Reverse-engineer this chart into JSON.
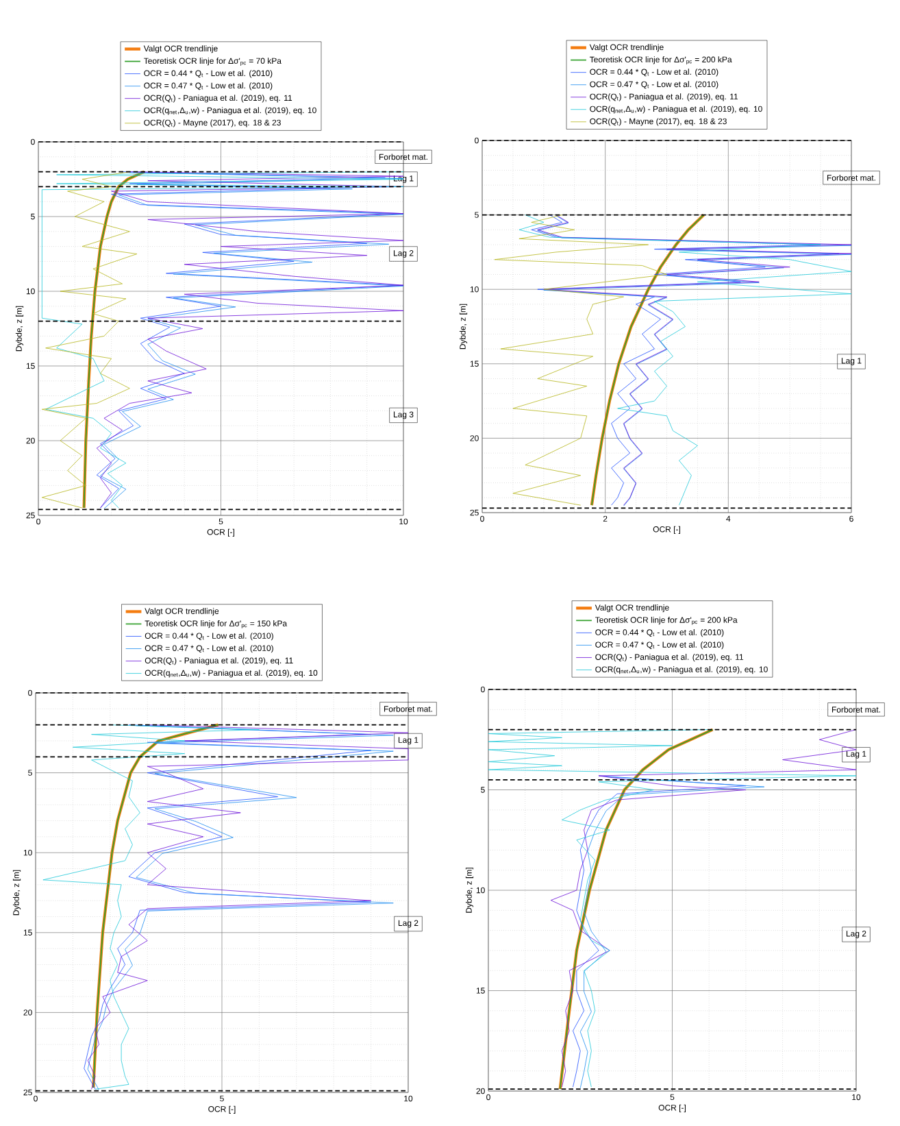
{
  "chart_data": [
    {
      "type": "line",
      "xlabel": "OCR [-]",
      "ylabel": "Dybde, z [m]",
      "xlim": [
        0,
        10
      ],
      "ylim": [
        25,
        0
      ],
      "xticks": [
        0,
        5,
        10
      ],
      "yticks": [
        0,
        5,
        10,
        15,
        20,
        25
      ],
      "grid": true,
      "legend": "top",
      "series": [
        {
          "name": "Valgt OCR trendlinje",
          "color": "#f47c10",
          "x": [
            2.9,
            2.45,
            2.2,
            2.0,
            1.88,
            1.7,
            1.55,
            1.45,
            1.38,
            1.3,
            1.25
          ],
          "values": [
            2,
            2.5,
            3,
            4,
            5,
            7,
            10,
            13,
            16,
            20,
            24.5
          ]
        },
        {
          "name": "Teoretisk OCR linje for Δσ'$_{pc}$ = 70 kPa",
          "color": "#33a02c",
          "x": [
            2.9,
            2.45,
            2.2,
            2.0,
            1.88,
            1.7,
            1.55,
            1.45,
            1.38,
            1.3,
            1.25
          ],
          "values": [
            2,
            2.5,
            3,
            4,
            5,
            7,
            10,
            13,
            16,
            20,
            24.5
          ]
        },
        {
          "name": "OCR = 0.44 * Q$_{t}$ - Low et al. (2010)",
          "color": "#1f4fff",
          "x": [
            2.3,
            9.5,
            2.5,
            8,
            2,
            2.8,
            10,
            4,
            5,
            9,
            4.5,
            7,
            3.5,
            10,
            3.5,
            5,
            2.8,
            3.6,
            2.8,
            3.2,
            4,
            2.8,
            3.5,
            2.2,
            2.6,
            1.7,
            2.1,
            1.6,
            2.2,
            1.7
          ],
          "values": [
            2.0,
            2.4,
            2.8,
            3.1,
            3.5,
            4.2,
            4.8,
            5.5,
            6.2,
            6.8,
            7.4,
            8.0,
            8.8,
            9.6,
            10.4,
            11.0,
            11.8,
            12.4,
            13.5,
            14.6,
            15.5,
            16.5,
            17.2,
            18.0,
            19.0,
            20.2,
            21.2,
            22.3,
            23.2,
            24.5
          ]
        },
        {
          "name": "OCR = 0.47 * Q$_{t}$ - Low et al. (2010)",
          "color": "#1c8cf0",
          "x": [
            2.5,
            10,
            2.7,
            8.6,
            2.2,
            3.0,
            10,
            4.3,
            5.4,
            9.6,
            4.8,
            7.5,
            3.7,
            10,
            3.7,
            5.4,
            3.0,
            3.9,
            3.0,
            3.4,
            4.3,
            3.0,
            3.7,
            2.3,
            2.8,
            1.8,
            2.2,
            1.7,
            2.4,
            1.8
          ],
          "values": [
            2.05,
            2.45,
            2.85,
            3.15,
            3.55,
            4.25,
            4.85,
            5.55,
            6.25,
            6.85,
            7.45,
            8.05,
            8.85,
            9.65,
            10.45,
            11.05,
            11.85,
            12.45,
            13.55,
            14.65,
            15.55,
            16.55,
            17.25,
            18.05,
            19.05,
            20.25,
            21.25,
            22.35,
            23.25,
            24.55
          ]
        },
        {
          "name": "OCR(Q$_{t}$) - Paniagua et al. (2019), eq. 11",
          "color": "#6a0fd8",
          "x": [
            2.5,
            10,
            3,
            10,
            2,
            3,
            10,
            3,
            6,
            10,
            5,
            9,
            4,
            7,
            10,
            4,
            6,
            10,
            3,
            4.5,
            3,
            3.5,
            4.6,
            3,
            4.2,
            2.5,
            1.8,
            2.3,
            1.6,
            2.0,
            1.7,
            2.0,
            1.7
          ],
          "values": [
            2.0,
            2.3,
            2.6,
            3.0,
            3.3,
            4.0,
            4.8,
            5.2,
            6.0,
            6.6,
            7.0,
            7.6,
            8.2,
            9.0,
            9.6,
            10.2,
            10.8,
            11.3,
            11.8,
            12.5,
            13.2,
            14.0,
            15.2,
            16.0,
            16.8,
            17.5,
            18.5,
            19.3,
            20.5,
            21.5,
            22.5,
            23.5,
            24.5
          ]
        },
        {
          "name": "OCR(q$_{net}$,Δ$_{u}$,w) - Paniagua et al. (2019), eq. 10",
          "color": "#1ec8d8",
          "x": [
            10,
            0.5,
            10,
            0.5,
            10,
            0.1,
            0.1,
            1.2,
            0.5,
            1.5,
            1.8,
            0.2,
            1.5,
            2.0,
            1.7,
            2.4,
            1.9,
            2.3,
            2.0,
            2.2
          ],
          "values": [
            2.0,
            2.2,
            2.5,
            2.8,
            3.0,
            3.2,
            11.8,
            12.2,
            13.8,
            14.5,
            16,
            17.9,
            18.5,
            19.5,
            20.5,
            21.5,
            22.2,
            23.0,
            24.0,
            24.5
          ]
        },
        {
          "name": "OCR(Q$_{t}$) - Mayne (2017), eq. 18 & 23",
          "color": "#b5b51a",
          "x": [
            2.5,
            1.2,
            2.0,
            0.8,
            1.8,
            1.0,
            2.5,
            1.2,
            2.7,
            1.5,
            2.3,
            0.6,
            2.4,
            1.5,
            2.2,
            1.8,
            0.2,
            2.0,
            1.7,
            2.5,
            1.6,
            0.1,
            1.3,
            0.6,
            1.2,
            0.8,
            1.3,
            0.1,
            1.2
          ],
          "values": [
            2.0,
            2.5,
            3.0,
            3.3,
            4.0,
            5.0,
            6.0,
            7.0,
            7.5,
            8.5,
            9.5,
            10.0,
            10.5,
            11.5,
            12.0,
            13.0,
            13.8,
            14.5,
            15.5,
            16.5,
            17.5,
            17.9,
            18.5,
            20.0,
            21.0,
            22.0,
            23.0,
            23.8,
            24.5
          ]
        }
      ],
      "ref_lines": [
        {
          "axis": "y",
          "value": 0,
          "color": "#000000",
          "line_style": "dashed"
        },
        {
          "axis": "y",
          "value": 2,
          "color": "#000000",
          "line_style": "dashed"
        },
        {
          "axis": "y",
          "value": 3,
          "color": "#000000",
          "line_style": "dashed"
        },
        {
          "axis": "y",
          "value": 12,
          "color": "#000000",
          "line_style": "dashed"
        },
        {
          "axis": "y",
          "value": 24.6,
          "color": "#000000",
          "line_style": "dashed"
        }
      ],
      "annotations": [
        "Forboret mat.",
        "Lag 1",
        "Lag 2",
        "Lag 3"
      ]
    },
    {
      "type": "line",
      "xlabel": "OCR [-]",
      "ylabel": "Dybde, z [m]",
      "xlim": [
        0,
        6
      ],
      "ylim": [
        25,
        0
      ],
      "xticks": [
        0,
        2,
        4,
        6
      ],
      "yticks": [
        0,
        5,
        10,
        15,
        20,
        25
      ],
      "grid": true,
      "legend": "top",
      "series": [
        {
          "name": "Valgt OCR trendlinje",
          "color": "#f47c10",
          "x": [
            3.6,
            3.35,
            3.15,
            2.9,
            2.7,
            2.42,
            2.22,
            2.07,
            1.95,
            1.85,
            1.78
          ],
          "values": [
            5,
            6,
            7,
            8.5,
            10,
            12.5,
            15,
            17.5,
            20,
            22.5,
            24.5
          ]
        },
        {
          "name": "Teoretisk OCR linje for Δσ'$_{pc}$ = 200 kPa",
          "color": "#33a02c",
          "x": [
            3.6,
            3.35,
            3.15,
            2.9,
            2.7,
            2.42,
            2.22,
            2.07,
            1.95,
            1.85,
            1.78
          ],
          "values": [
            5,
            6,
            7,
            8.5,
            10,
            12.5,
            15,
            17.5,
            20,
            22.5,
            24.5
          ]
        },
        {
          "name": "OCR = 0.44 * Q$_{t}$ - Low et al. (2010)",
          "color": "#1f4fff",
          "x": [
            1.1,
            1.3,
            0.8,
            1.2,
            5.5,
            2.8,
            5.8,
            3.3,
            4.6,
            2.8,
            4.2,
            0.9,
            2.8,
            2.5,
            2.9,
            2.6,
            2.8,
            2.3,
            2.5,
            2.2,
            2.4,
            2.1,
            2.2,
            2.4,
            2.1,
            2.3,
            2.2,
            2.1
          ],
          "values": [
            5.0,
            5.5,
            6.0,
            6.5,
            7.0,
            7.3,
            7.6,
            8.0,
            8.5,
            9.0,
            9.5,
            10.0,
            10.5,
            11.0,
            12.0,
            13.0,
            14.0,
            15.0,
            16.0,
            17.0,
            18.0,
            19.0,
            20.0,
            21.0,
            22.0,
            23.0,
            24.0,
            24.5
          ]
        },
        {
          "name": "OCR = 0.47 * Q$_{t}$ - Low et al. (2010)",
          "color": "#1c8cf0",
          "x": [
            1.2,
            1.4,
            0.9,
            1.3,
            6,
            3.0,
            6,
            3.5,
            4.9,
            3.0,
            4.5,
            1.0,
            3.0,
            2.7,
            3.1,
            2.8,
            3.0,
            2.5,
            2.7,
            2.4,
            2.6,
            2.3,
            2.4,
            2.6,
            2.3,
            2.5,
            2.4,
            2.3
          ],
          "values": [
            5.05,
            5.55,
            6.05,
            6.55,
            7.05,
            7.35,
            7.65,
            8.05,
            8.55,
            9.05,
            9.55,
            10.05,
            10.55,
            11.05,
            12.05,
            13.05,
            14.05,
            15.05,
            16.05,
            17.05,
            18.05,
            19.05,
            20.05,
            21.05,
            22.05,
            23.05,
            24.05,
            24.55
          ]
        },
        {
          "name": "OCR(Q$_{t}$) - Paniagua et al. (2019), eq. 11",
          "color": "#6a0fd8",
          "x": [
            1.2,
            1.4,
            0.9,
            1.3,
            6,
            3,
            6,
            3.5,
            5,
            3.0,
            4.5,
            1.0,
            3.0,
            2.7,
            3.1,
            2.8,
            3.0,
            2.5,
            2.7,
            2.4,
            2.6,
            2.3,
            2.4,
            2.6,
            2.3,
            2.5,
            2.4,
            2.3
          ],
          "values": [
            5.0,
            5.5,
            6.0,
            6.5,
            7.0,
            7.3,
            7.6,
            8.0,
            8.5,
            9.0,
            9.5,
            10.0,
            10.5,
            11.0,
            12.0,
            13.0,
            14.0,
            15.0,
            16.0,
            17.0,
            18.0,
            19.0,
            20.0,
            21.0,
            22.0,
            23.0,
            24.0,
            24.5
          ]
        },
        {
          "name": "OCR(q$_{net}$,Δ$_{u}$,w) - Paniagua et al. (2019), eq. 10",
          "color": "#1ec8d8",
          "x": [
            0.7,
            1.0,
            0.6,
            1.1,
            5.5,
            3.2,
            5,
            6,
            3.5,
            6,
            2.8,
            3.1,
            3.3,
            2.9,
            3.1,
            2.8,
            3.0,
            2.8,
            2.2,
            3.0,
            3.1,
            3.5,
            3.2,
            3.4,
            3.3,
            3.2
          ],
          "values": [
            5.0,
            5.5,
            6.0,
            6.5,
            7.0,
            7.5,
            8.0,
            8.8,
            9.5,
            10.3,
            10.8,
            11.5,
            12.5,
            13.5,
            14.5,
            15.5,
            16.5,
            17.5,
            18.0,
            18.5,
            19.5,
            20.5,
            21.5,
            22.5,
            23.5,
            24.5
          ]
        },
        {
          "name": "OCR(Q$_{t}$) - Mayne (2017), eq. 18 & 23",
          "color": "#b5b51a",
          "x": [
            1.3,
            0.8,
            1.5,
            0.6,
            2.7,
            1.2,
            0.2,
            2.6,
            3.0,
            2.0,
            1.0,
            2.3,
            1.8,
            1.7,
            1.8,
            0.3,
            1.8,
            0.9,
            1.7,
            0.5,
            1.7,
            1.6,
            0.7,
            1.6,
            0.5,
            1.6
          ],
          "values": [
            5.0,
            5.5,
            6.0,
            6.6,
            7.0,
            7.5,
            8.0,
            8.4,
            9.0,
            9.5,
            10.0,
            10.5,
            11.0,
            12.0,
            13.0,
            14.0,
            14.5,
            16.0,
            16.5,
            18.0,
            18.5,
            20.0,
            21.8,
            22.5,
            23.7,
            24.5
          ]
        }
      ],
      "ref_lines": [
        {
          "axis": "y",
          "value": 0,
          "color": "#000000",
          "line_style": "dashed"
        },
        {
          "axis": "y",
          "value": 5,
          "color": "#000000",
          "line_style": "dashed"
        },
        {
          "axis": "y",
          "value": 24.7,
          "color": "#000000",
          "line_style": "dashed"
        }
      ],
      "annotations": [
        "Forboret mat.",
        "Lag 1"
      ]
    },
    {
      "type": "line",
      "xlabel": "OCR [-]",
      "ylabel": "Dybde, z [m]",
      "xlim": [
        0,
        10
      ],
      "ylim": [
        25,
        0
      ],
      "xticks": [
        0,
        5,
        10
      ],
      "yticks": [
        0,
        5,
        10,
        15,
        20,
        25
      ],
      "grid": true,
      "legend": "top",
      "series": [
        {
          "name": "Valgt OCR trendlinje",
          "color": "#f47c10",
          "x": [
            4.9,
            3.3,
            2.8,
            2.55,
            2.2,
            2.05,
            1.8,
            1.65,
            1.55
          ],
          "values": [
            2,
            3,
            4,
            5,
            8,
            10,
            15,
            20,
            24.7
          ]
        },
        {
          "name": "Teoretisk OCR linje for Δσ'$_{pc}$ = 150 kPa",
          "color": "#33a02c",
          "x": [
            4.9,
            3.3,
            2.8,
            2.55,
            2.2,
            2.05,
            1.8,
            1.65,
            1.55
          ],
          "values": [
            2,
            3,
            4,
            5,
            8,
            10,
            15,
            20,
            24.7
          ]
        },
        {
          "name": "OCR = 0.44 * Q$_{t}$ - Low et al. (2010)",
          "color": "#1f4fff",
          "x": [
            2.5,
            9,
            3,
            9,
            6,
            3,
            6.5,
            3,
            4,
            5,
            3.2,
            2.5,
            4,
            9,
            2.8,
            2.6,
            2.2,
            2.4,
            2.0,
            1.8,
            1.7,
            1.5,
            1.4,
            1.3,
            1.6
          ],
          "values": [
            2.0,
            2.6,
            3.1,
            3.6,
            4.3,
            5.0,
            6.5,
            7.2,
            8.0,
            9.0,
            10.0,
            11.5,
            12.5,
            13.1,
            13.6,
            15.0,
            16.0,
            17.0,
            18.5,
            19.5,
            20.5,
            21.5,
            22.5,
            23.5,
            24.8
          ]
        },
        {
          "name": "OCR = 0.47 * Q$_{t}$ - Low et al. (2010)",
          "color": "#1c8cf0",
          "x": [
            2.7,
            9.6,
            3.2,
            9.6,
            6.4,
            3.2,
            7,
            3.2,
            4.3,
            5.3,
            3.4,
            2.7,
            4.3,
            9.6,
            3.0,
            2.8,
            2.4,
            2.6,
            2.1,
            1.9,
            1.8,
            1.6,
            1.5,
            1.4,
            1.7
          ],
          "values": [
            2.05,
            2.65,
            3.15,
            3.65,
            4.35,
            5.05,
            6.55,
            7.25,
            8.05,
            9.05,
            10.05,
            11.55,
            12.55,
            13.15,
            13.65,
            15.05,
            16.05,
            17.05,
            18.55,
            19.55,
            20.55,
            21.55,
            22.55,
            23.55,
            24.85
          ]
        },
        {
          "name": "OCR(Q$_{t}$) - Paniagua et al. (2019), eq. 11",
          "color": "#6a0fd8",
          "x": [
            3,
            10,
            4,
            10,
            10,
            3,
            3.5,
            4.5,
            3,
            5.5,
            3,
            4.5,
            3.0,
            3.5,
            3.0,
            9.0,
            3.0,
            2.5,
            3.0,
            2.3,
            2.2,
            3.0,
            1.8,
            2.0,
            1.6,
            1.7,
            1.4,
            1.6,
            1.5
          ],
          "values": [
            2.0,
            2.5,
            3.0,
            3.5,
            4.2,
            4.6,
            5.0,
            6.0,
            6.8,
            7.5,
            8.2,
            9.0,
            10.0,
            11.0,
            12.0,
            13.0,
            13.5,
            14.5,
            15.5,
            16.5,
            17.5,
            18.0,
            19.0,
            20.0,
            21.0,
            22.0,
            23.0,
            24.0,
            24.8
          ]
        },
        {
          "name": "OCR(q$_{net}$,Δ$_{u}$,w) - Paniagua et al. (2019), eq. 10",
          "color": "#1ec8d8",
          "x": [
            2,
            6,
            1.5,
            4,
            1.0,
            4,
            1.5,
            2.0,
            2.6,
            2.5,
            2.8,
            2.4,
            2.6,
            2.4,
            0.2,
            2.3,
            2.2,
            2.3,
            2.1,
            2.0,
            2.2,
            2.0,
            2.1,
            2.3,
            2.5,
            2.3,
            2.3,
            2.4,
            2.5,
            1.6
          ],
          "values": [
            2.0,
            2.3,
            2.6,
            3.0,
            3.4,
            3.8,
            4.2,
            4.8,
            5.5,
            6.5,
            7.5,
            8.5,
            9.5,
            10.5,
            11.7,
            12.0,
            13.0,
            14.0,
            15.0,
            16.0,
            17.0,
            18.0,
            19.0,
            20.0,
            21.0,
            22.0,
            23.0,
            24.0,
            24.5,
            24.8
          ]
        }
      ],
      "ref_lines": [
        {
          "axis": "y",
          "value": 0,
          "color": "#000000",
          "line_style": "dashed"
        },
        {
          "axis": "y",
          "value": 2,
          "color": "#000000",
          "line_style": "dashed"
        },
        {
          "axis": "y",
          "value": 4,
          "color": "#000000",
          "line_style": "dashed"
        },
        {
          "axis": "y",
          "value": 24.9,
          "color": "#000000",
          "line_style": "dashed"
        }
      ],
      "annotations": [
        "Forboret mat.",
        "Lag 1",
        "Lag 2"
      ]
    },
    {
      "type": "line",
      "xlabel": "OCR [-]",
      "ylabel": "Dybde, z [m]",
      "xlim": [
        0,
        10
      ],
      "ylim": [
        20,
        0
      ],
      "xticks": [
        0,
        5,
        10
      ],
      "yticks": [
        0,
        5,
        10,
        15,
        20
      ],
      "grid": true,
      "legend": "top",
      "series": [
        {
          "name": "Valgt OCR trendlinje",
          "color": "#f47c10",
          "x": [
            6.1,
            4.9,
            4.2,
            3.7,
            3.2,
            2.75,
            2.4,
            2.2,
            1.95
          ],
          "values": [
            2,
            3,
            4,
            5,
            7,
            10,
            13,
            16,
            19.9
          ]
        },
        {
          "name": "Teoretisk OCR linje for Δσ'$_{pc}$ = 200 kPa",
          "color": "#33a02c",
          "x": [
            6.1,
            4.9,
            4.2,
            3.7,
            3.2,
            2.75,
            2.4,
            2.2,
            1.95
          ],
          "values": [
            2,
            3,
            4,
            5,
            7,
            10,
            13,
            16,
            19.9
          ]
        },
        {
          "name": "OCR = 0.44 * Q$_{t}$ - Low et al. (2010)",
          "color": "#1f4fff",
          "x": [
            3,
            7,
            3.5,
            3,
            2.7,
            2.5,
            2.6,
            2.5,
            2.4,
            2.6,
            3.0,
            2.4,
            2.4,
            2.6,
            2.3,
            2.5,
            2.4,
            2.3
          ],
          "values": [
            4.3,
            4.8,
            5.2,
            6.0,
            7.0,
            8.0,
            9.0,
            10.0,
            11.0,
            12.0,
            13.0,
            14.0,
            15.0,
            16.0,
            17.0,
            18.0,
            19.0,
            19.8
          ]
        },
        {
          "name": "OCR = 0.47 * Q$_{t}$ - Low et al. (2010)",
          "color": "#1c8cf0",
          "x": [
            3.2,
            7.5,
            3.7,
            3.2,
            2.9,
            2.7,
            2.8,
            2.7,
            2.6,
            2.8,
            3.2,
            2.6,
            2.6,
            2.8,
            2.5,
            2.7,
            2.6,
            2.5
          ],
          "values": [
            4.35,
            4.85,
            5.25,
            6.05,
            7.05,
            8.05,
            9.05,
            10.05,
            11.05,
            12.05,
            13.05,
            14.05,
            15.05,
            16.05,
            17.05,
            18.05,
            19.05,
            19.85
          ]
        },
        {
          "name": "OCR(Q$_{t}$) - Paniagua et al. (2019), eq. 11",
          "color": "#6a0fd8",
          "x": [
            10,
            9,
            10,
            8,
            10,
            3,
            5,
            7,
            3.5,
            2.8,
            2.6,
            2.7,
            2.5,
            2.4,
            1.7,
            2.3,
            2.5,
            3.3,
            2.2,
            2.3,
            2.1,
            2.2,
            2.0,
            2.1,
            2.0
          ],
          "values": [
            2.0,
            2.5,
            3.0,
            3.5,
            4.0,
            4.3,
            4.8,
            5.0,
            5.5,
            6.0,
            7.0,
            8.0,
            9.0,
            10.0,
            10.5,
            11.0,
            12.0,
            13.0,
            14.0,
            15.0,
            16.0,
            17.0,
            18.0,
            19.0,
            19.8
          ]
        },
        {
          "name": "OCR(q$_{net}$,Δ$_{u}$,w) - Paniagua et al. (2019), eq. 10",
          "color": "#1ec8d8",
          "x": [
            6,
            0,
            2,
            0,
            5,
            0,
            1.8,
            0,
            2,
            0,
            10,
            3,
            4.5,
            3.2,
            2.5,
            2.0,
            3.3,
            2.4,
            2.9,
            2.7,
            2.6,
            2.5,
            2.8,
            3.3,
            2.6,
            2.8,
            2.9,
            2.7,
            2.8,
            2.7,
            2.8
          ],
          "values": [
            2.0,
            2.2,
            2.4,
            2.6,
            2.8,
            3.0,
            3.3,
            3.6,
            3.8,
            4.0,
            4.3,
            4.6,
            5.0,
            5.5,
            6.0,
            6.5,
            7.0,
            7.5,
            8.5,
            9.5,
            10.5,
            11.5,
            12.5,
            13.0,
            14.0,
            15.0,
            16.0,
            17.0,
            18.0,
            19.0,
            19.8
          ]
        }
      ],
      "ref_lines": [
        {
          "axis": "y",
          "value": 0,
          "color": "#000000",
          "line_style": "dashed"
        },
        {
          "axis": "y",
          "value": 2,
          "color": "#000000",
          "line_style": "dashed"
        },
        {
          "axis": "y",
          "value": 4.5,
          "color": "#000000",
          "line_style": "dashed"
        },
        {
          "axis": "y",
          "value": 19.9,
          "color": "#000000",
          "line_style": "dashed"
        }
      ],
      "annotations": [
        "Forboret mat.",
        "Lag 1",
        "Lag 2"
      ]
    }
  ]
}
